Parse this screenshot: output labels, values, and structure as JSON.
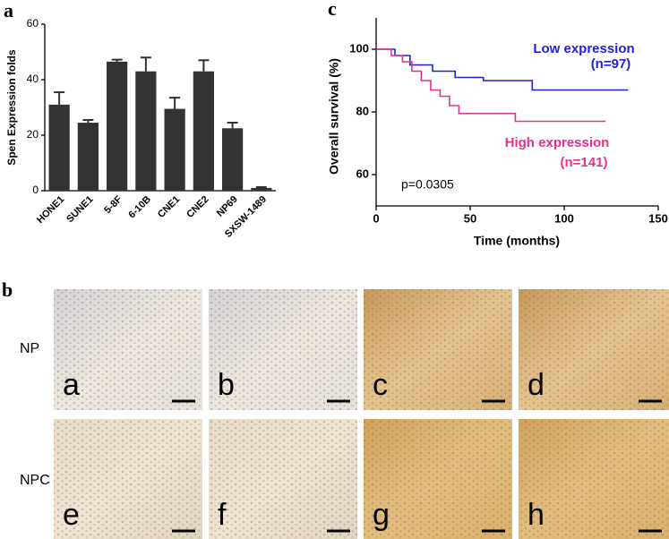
{
  "chart_data": [
    {
      "type": "bar",
      "panel": "a",
      "ylabel": "Spen  Expression  folds",
      "categories": [
        "HONE1",
        "SUNE1",
        "5-8F",
        "6-10B",
        "CNE1",
        "CNE2",
        "NP69",
        "SXSW-1489"
      ],
      "values": [
        31,
        24.5,
        46.5,
        43,
        29.5,
        43,
        22.5,
        1
      ],
      "errors": [
        4.5,
        1,
        0.7,
        5,
        4,
        4,
        2,
        0.3
      ],
      "color": "#333333",
      "ylim": [
        0,
        60
      ],
      "yticks": [
        0,
        20,
        40,
        60
      ]
    },
    {
      "type": "line",
      "panel": "c",
      "xlabel": "Time (months)",
      "ylabel": "Overall survival (%)",
      "annotation": "p=0.0305",
      "xlim": [
        0,
        150
      ],
      "xticks": [
        0,
        50,
        100,
        150
      ],
      "ylim": [
        50,
        110
      ],
      "yticks": [
        60,
        80,
        100
      ],
      "series": [
        {
          "name": "Low expression",
          "n_label": "(n=97)",
          "color": "#1f1fe0",
          "x": [
            0,
            10,
            10,
            18,
            18,
            30,
            30,
            42,
            42,
            57,
            57,
            83,
            83,
            134
          ],
          "values": [
            100,
            100,
            98,
            98,
            95,
            95,
            93,
            93,
            91,
            91,
            90,
            90,
            87,
            87
          ]
        },
        {
          "name": "High expression",
          "n_label": "(n=141)",
          "color": "#e8308a",
          "x": [
            0,
            8,
            8,
            14,
            14,
            19,
            19,
            24,
            24,
            29,
            29,
            34,
            34,
            39,
            39,
            44,
            44,
            74,
            74,
            122
          ],
          "values": [
            100,
            100,
            98,
            98,
            96,
            96,
            93,
            93,
            90,
            90,
            87,
            87,
            85,
            85,
            82,
            82,
            79.5,
            79.5,
            77,
            77
          ]
        }
      ]
    }
  ],
  "figure": {
    "panel_b": "b",
    "rows": [
      "NP",
      "NPC"
    ],
    "images": [
      "a",
      "b",
      "c",
      "d",
      "e",
      "f",
      "g",
      "h"
    ]
  }
}
